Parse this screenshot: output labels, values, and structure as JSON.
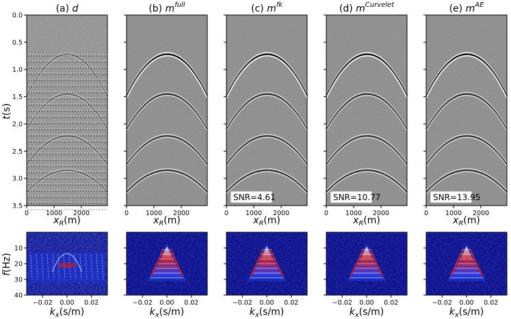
{
  "figure": {
    "panels": [
      {
        "id": "a",
        "prefix": "(a) ",
        "symbol": "d",
        "sup": ""
      },
      {
        "id": "b",
        "prefix": "(b) ",
        "symbol": "m",
        "sup": "full"
      },
      {
        "id": "c",
        "prefix": "(c) ",
        "symbol": "m",
        "sup": "fk",
        "snr": "SNR=4.61"
      },
      {
        "id": "d",
        "prefix": "(d) ",
        "symbol": "m",
        "sup": "Curvelet",
        "snr": "SNR=10.77"
      },
      {
        "id": "e",
        "prefix": "(e) ",
        "symbol": "m",
        "sup": "AE",
        "snr": "SNR=13.95"
      }
    ],
    "top_axes": {
      "y_label": {
        "var": "t",
        "unit": "(s)"
      },
      "x_label": {
        "var": "x",
        "sub": "R",
        "unit": "(m)"
      },
      "y_ticks": [
        "0.0",
        "0.5",
        "1.0",
        "1.5",
        "2.0",
        "2.5",
        "3.0",
        "3.5"
      ],
      "y_range": [
        0.0,
        3.5
      ],
      "x_ticks": [
        "0",
        "1000",
        "2000"
      ],
      "x_tick_values": [
        0,
        1000,
        2000
      ],
      "x_range": [
        0,
        2950
      ]
    },
    "bottom_axes": {
      "y_label": {
        "var": "f",
        "unit": "(Hz)"
      },
      "x_label": {
        "var": "k",
        "sub": "x",
        "unit": "(s/m)"
      },
      "y_ticks": [
        "10",
        "20",
        "30",
        "40"
      ],
      "y_tick_values": [
        10,
        20,
        30,
        40
      ],
      "y_range": [
        0,
        40
      ],
      "x_ticks": [
        "−0.02",
        "0.00",
        "0.02"
      ],
      "x_tick_values": [
        -0.02,
        0.0,
        0.02
      ],
      "x_range": [
        -0.033,
        0.033
      ]
    },
    "events_t0": [
      0.72,
      1.45,
      2.22,
      2.85
    ],
    "colors": {
      "gather_bg": "#8c8c8c",
      "spectrum_bg": "#00007a",
      "spectrum_mid": "#1e32c8",
      "spectrum_hot": "#d21e1e",
      "spectrum_white": "#e6ebff"
    }
  }
}
